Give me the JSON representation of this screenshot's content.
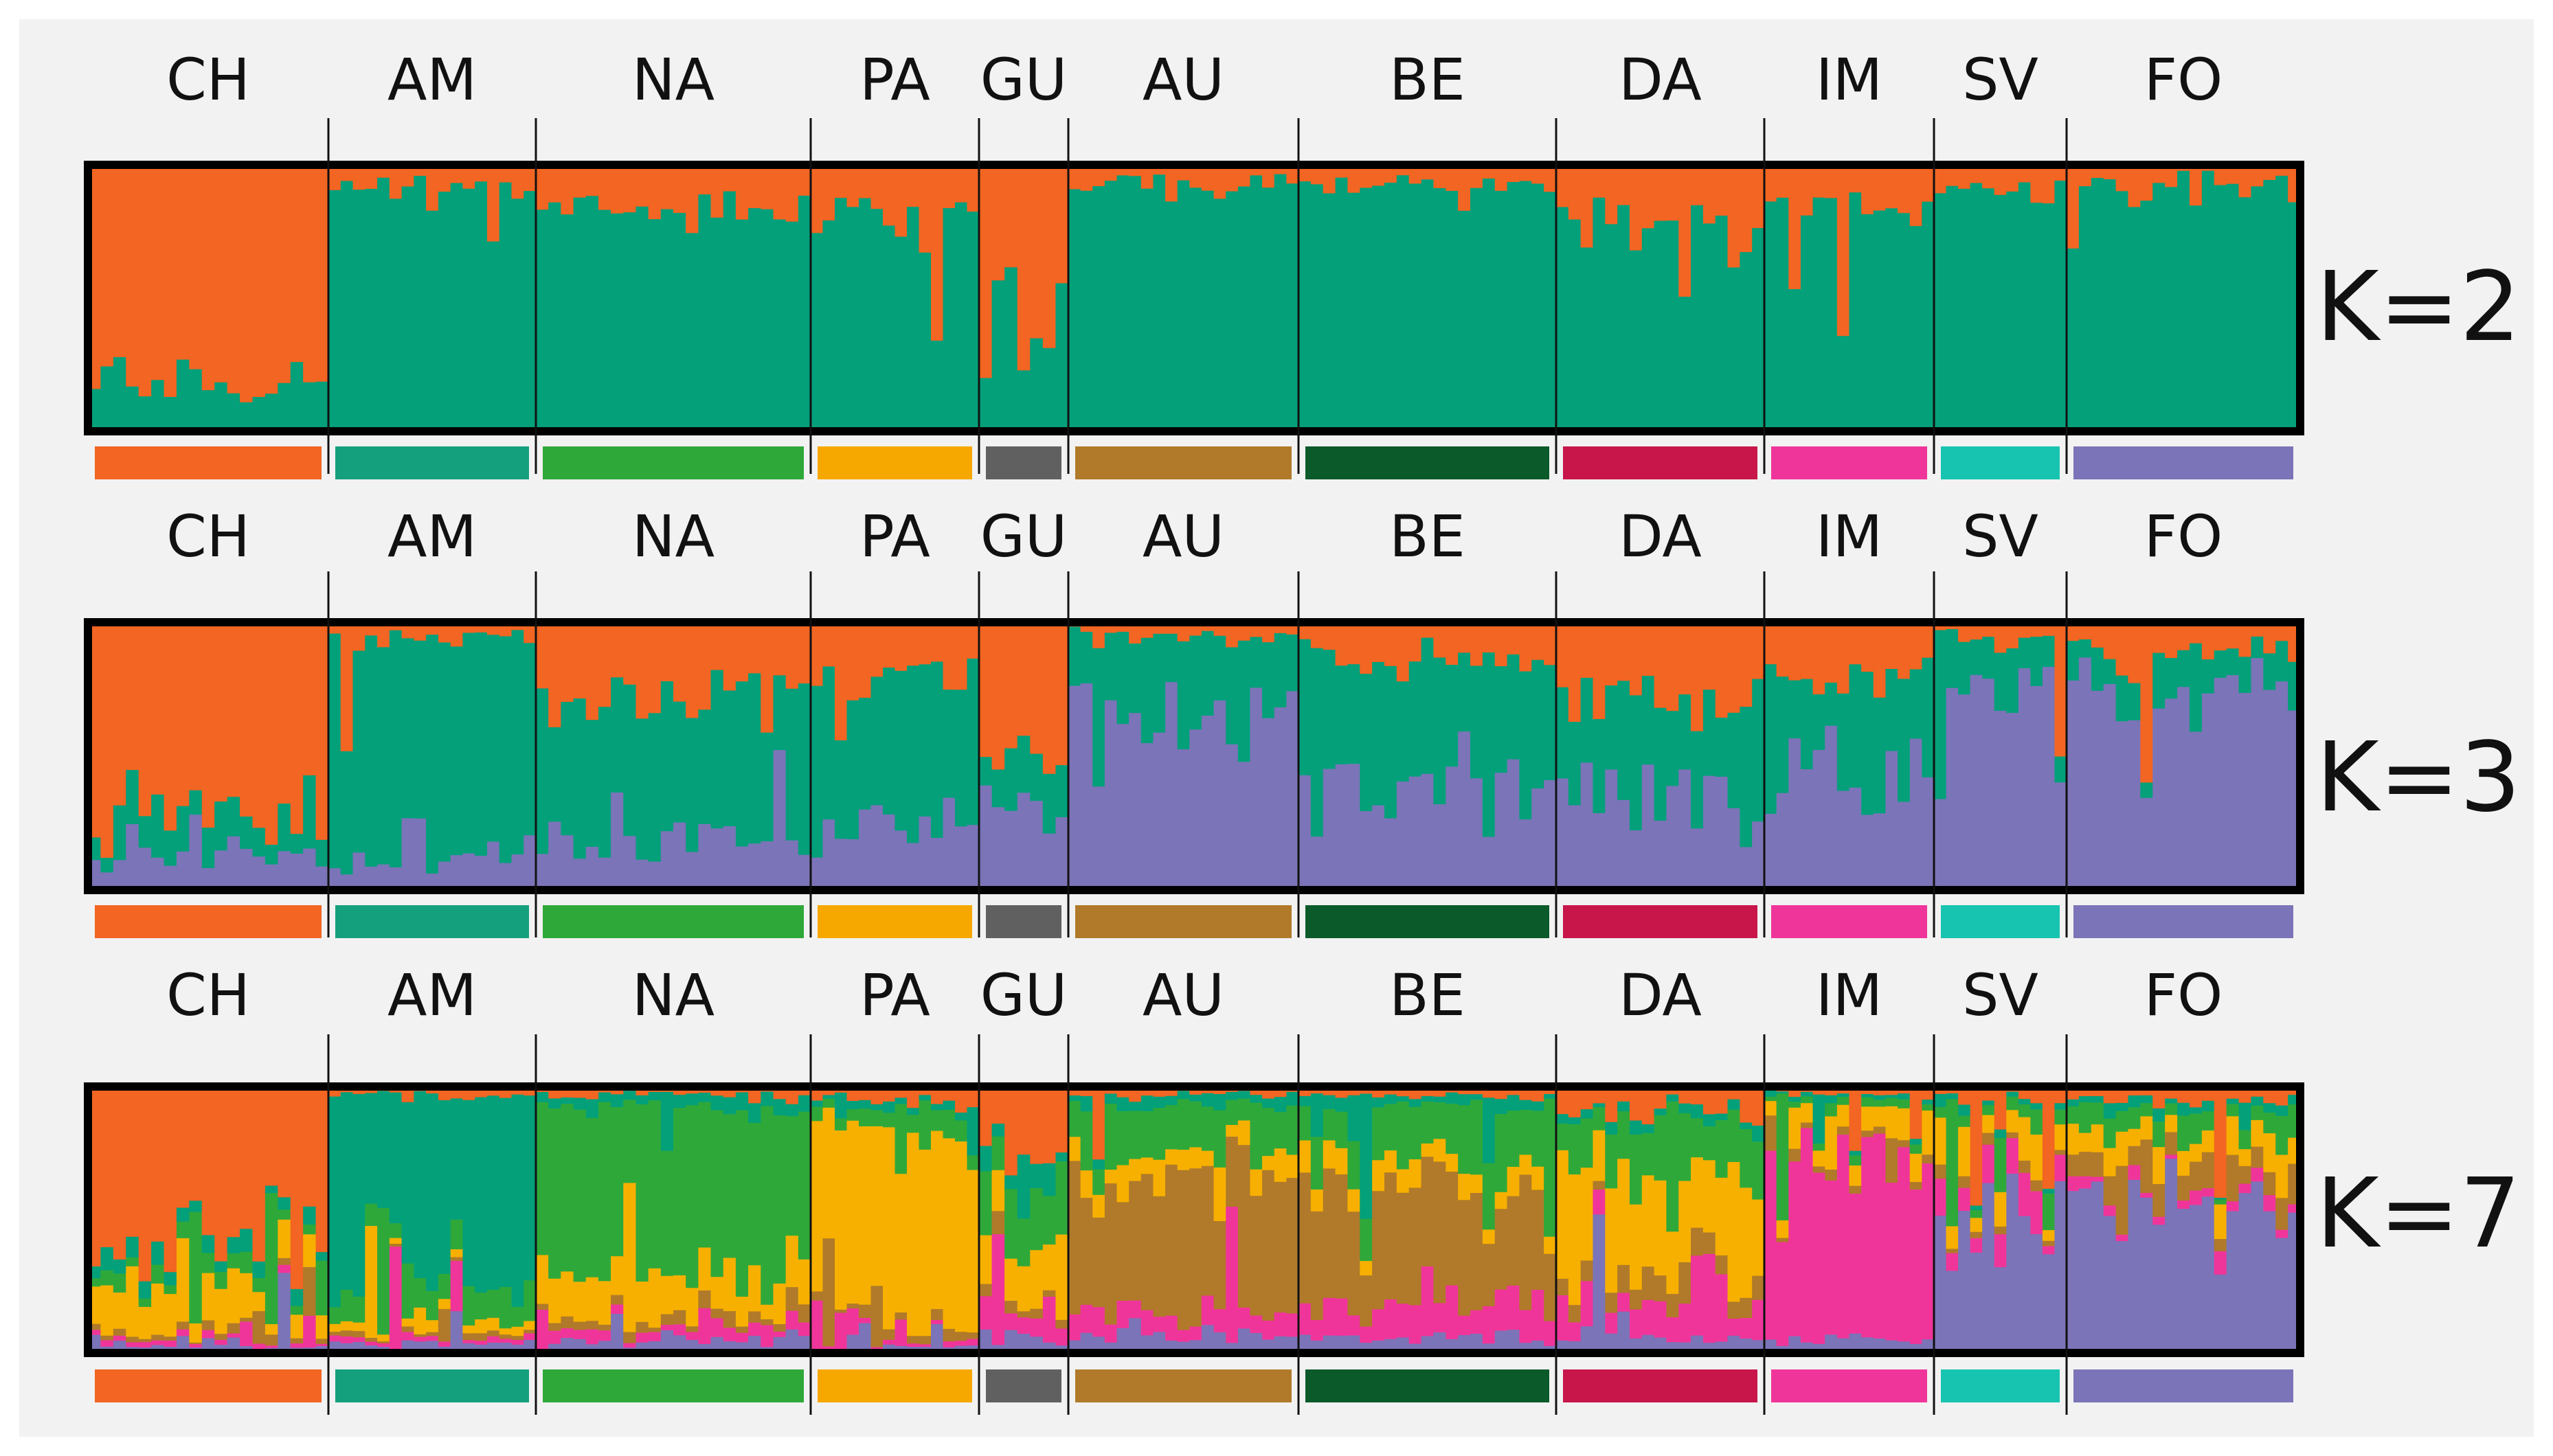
{
  "populations": [
    "CH",
    "AM",
    "NA",
    "PA",
    "GU",
    "AU",
    "BE",
    "DA",
    "IM",
    "SV",
    "FO"
  ],
  "population_colors": {
    "CH": "#f26522",
    "AM": "#15a07d",
    "NA": "#2fa83a",
    "PA": "#f7a800",
    "GU": "#606060",
    "AU": "#b07a2a",
    "BE": "#0b5a2a",
    "DA": "#c8164a",
    "IM": "#f0359a",
    "SV": "#16c4b0",
    "FO": "#7b74b8"
  },
  "chart_data": [
    {
      "type": "bar",
      "subtype": "stacked-admixture",
      "title": "K=2",
      "cluster_colors": [
        "#f26522",
        "#03a07a"
      ],
      "groups": [
        {
          "label": "CH",
          "n": 19,
          "means": [
            0.8,
            0.2
          ]
        },
        {
          "label": "AM",
          "n": 17,
          "means": [
            0.08,
            0.92
          ]
        },
        {
          "label": "NA",
          "n": 22,
          "means": [
            0.18,
            0.82
          ]
        },
        {
          "label": "PA",
          "n": 14,
          "means": [
            0.2,
            0.8
          ]
        },
        {
          "label": "GU",
          "n": 7,
          "means": [
            0.6,
            0.4
          ]
        },
        {
          "label": "AU",
          "n": 19,
          "means": [
            0.07,
            0.93
          ]
        },
        {
          "label": "BE",
          "n": 21,
          "means": [
            0.08,
            0.92
          ]
        },
        {
          "label": "DA",
          "n": 17,
          "means": [
            0.22,
            0.78
          ]
        },
        {
          "label": "IM",
          "n": 14,
          "means": [
            0.14,
            0.86
          ]
        },
        {
          "label": "SV",
          "n": 11,
          "means": [
            0.1,
            0.9
          ]
        },
        {
          "label": "FO",
          "n": 19,
          "means": [
            0.08,
            0.92
          ]
        }
      ]
    },
    {
      "type": "bar",
      "subtype": "stacked-admixture",
      "title": "K=3",
      "cluster_colors": [
        "#f26522",
        "#03a07a",
        "#7b74b8"
      ],
      "groups": [
        {
          "label": "CH",
          "n": 19,
          "means": [
            0.72,
            0.14,
            0.14
          ]
        },
        {
          "label": "AM",
          "n": 17,
          "means": [
            0.05,
            0.85,
            0.1
          ]
        },
        {
          "label": "NA",
          "n": 22,
          "means": [
            0.28,
            0.52,
            0.2
          ]
        },
        {
          "label": "PA",
          "n": 14,
          "means": [
            0.2,
            0.55,
            0.25
          ]
        },
        {
          "label": "GU",
          "n": 7,
          "means": [
            0.55,
            0.15,
            0.3
          ]
        },
        {
          "label": "AU",
          "n": 19,
          "means": [
            0.06,
            0.34,
            0.6
          ]
        },
        {
          "label": "BE",
          "n": 21,
          "means": [
            0.12,
            0.48,
            0.4
          ]
        },
        {
          "label": "DA",
          "n": 17,
          "means": [
            0.3,
            0.38,
            0.32
          ]
        },
        {
          "label": "IM",
          "n": 14,
          "means": [
            0.2,
            0.38,
            0.42
          ]
        },
        {
          "label": "SV",
          "n": 11,
          "means": [
            0.06,
            0.18,
            0.76
          ]
        },
        {
          "label": "FO",
          "n": 19,
          "means": [
            0.1,
            0.14,
            0.76
          ]
        }
      ]
    },
    {
      "type": "bar",
      "subtype": "stacked-admixture",
      "title": "K=7",
      "cluster_colors": [
        "#f26522",
        "#03a07a",
        "#2fa83a",
        "#f7b000",
        "#b07a2a",
        "#f0359a",
        "#7b74b8"
      ],
      "groups": [
        {
          "label": "CH",
          "n": 19,
          "means": [
            0.7,
            0.06,
            0.05,
            0.12,
            0.02,
            0.02,
            0.03
          ]
        },
        {
          "label": "AM",
          "n": 17,
          "means": [
            0.04,
            0.72,
            0.12,
            0.04,
            0.02,
            0.02,
            0.04
          ]
        },
        {
          "label": "NA",
          "n": 22,
          "means": [
            0.04,
            0.05,
            0.62,
            0.16,
            0.04,
            0.04,
            0.05
          ]
        },
        {
          "label": "PA",
          "n": 14,
          "means": [
            0.06,
            0.03,
            0.06,
            0.78,
            0.03,
            0.02,
            0.02
          ]
        },
        {
          "label": "GU",
          "n": 7,
          "means": [
            0.25,
            0.08,
            0.22,
            0.25,
            0.05,
            0.08,
            0.07
          ]
        },
        {
          "label": "AU",
          "n": 19,
          "means": [
            0.03,
            0.04,
            0.15,
            0.08,
            0.55,
            0.08,
            0.07
          ]
        },
        {
          "label": "BE",
          "n": 21,
          "means": [
            0.04,
            0.04,
            0.22,
            0.1,
            0.42,
            0.12,
            0.06
          ]
        },
        {
          "label": "DA",
          "n": 17,
          "means": [
            0.1,
            0.04,
            0.18,
            0.4,
            0.08,
            0.14,
            0.06
          ]
        },
        {
          "label": "IM",
          "n": 14,
          "means": [
            0.03,
            0.02,
            0.03,
            0.12,
            0.03,
            0.72,
            0.05
          ]
        },
        {
          "label": "SV",
          "n": 11,
          "means": [
            0.04,
            0.03,
            0.05,
            0.12,
            0.04,
            0.12,
            0.6
          ]
        },
        {
          "label": "FO",
          "n": 19,
          "means": [
            0.05,
            0.03,
            0.08,
            0.1,
            0.12,
            0.04,
            0.58
          ]
        }
      ]
    }
  ]
}
